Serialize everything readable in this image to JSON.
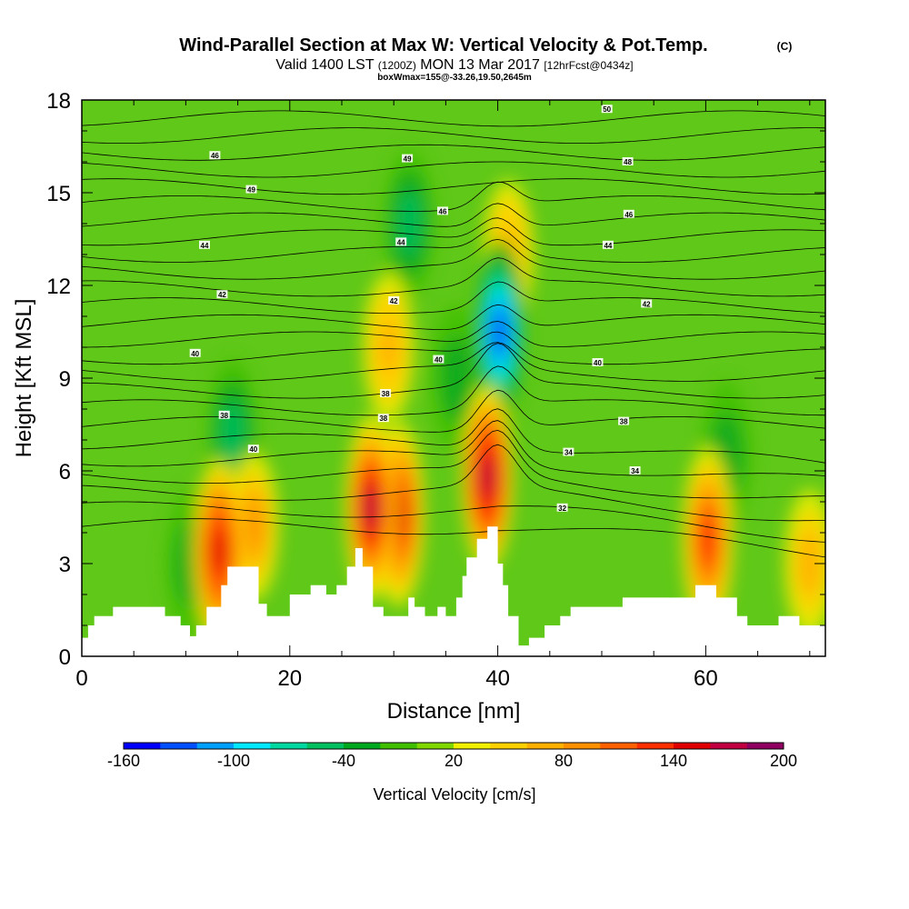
{
  "chart_data": {
    "type": "heatmap",
    "title": "Wind-Parallel Section at Max W: Vertical Velocity & Pot.Temp.",
    "title_mark": "(C)",
    "subtitle_parts": [
      "Valid 1400 LST",
      "(1200Z)",
      "MON 13 Mar 2017",
      "[12hrFcst@0434z]"
    ],
    "boxwmax": "boxWmax=155@-33.26,19.50,2645m",
    "xlabel": "Distance [nm]",
    "ylabel": "Height [Kft MSL]",
    "xlim": [
      0,
      71.5
    ],
    "ylim": [
      0,
      18
    ],
    "x_ticks": [
      0,
      20,
      40,
      60
    ],
    "y_ticks": [
      0,
      3,
      6,
      9,
      12,
      15,
      18
    ],
    "colorbar": {
      "label": "Vertical Velocity [cm/s]",
      "range": [
        -160,
        200
      ],
      "tick_labels": [
        "-160",
        "-100",
        "-40",
        "20",
        "80",
        "140",
        "200"
      ],
      "colors": [
        "#0000ff",
        "#0050ff",
        "#00a0ff",
        "#00e8ff",
        "#00d8a0",
        "#00c060",
        "#00a820",
        "#40c000",
        "#80d800",
        "#f0f000",
        "#ffd000",
        "#ffb000",
        "#ff9000",
        "#ff6000",
        "#ff3000",
        "#e00000",
        "#c00040",
        "#900060"
      ]
    },
    "terrain_profile": {
      "x": [
        0,
        0.6,
        1.2,
        3,
        6,
        8,
        9.5,
        10.4,
        11,
        12,
        13.4,
        14,
        16,
        17,
        17.8,
        19,
        20,
        21.5,
        22,
        23.5,
        24.5,
        25.5,
        26.3,
        27,
        28,
        29,
        30,
        31.4,
        32,
        33,
        34.2,
        35,
        36,
        36.6,
        37,
        38,
        39,
        40,
        40.5,
        41,
        42,
        43,
        44.5,
        46,
        47,
        50,
        52,
        55,
        57,
        58,
        59,
        61,
        62,
        63,
        64,
        67,
        69,
        71.5
      ],
      "height": [
        0.6,
        1.0,
        1.3,
        1.6,
        1.6,
        1.3,
        1.0,
        0.65,
        1.0,
        1.6,
        2.3,
        2.9,
        2.9,
        1.7,
        1.3,
        1.3,
        2.0,
        2.0,
        2.3,
        2.0,
        2.3,
        2.9,
        3.5,
        2.9,
        1.6,
        1.3,
        1.3,
        1.9,
        1.6,
        1.3,
        1.6,
        1.3,
        1.9,
        2.6,
        3.2,
        3.8,
        4.2,
        3.0,
        2.3,
        1.3,
        0.35,
        0.6,
        1.0,
        1.3,
        1.6,
        1.6,
        1.9,
        1.9,
        1.9,
        1.9,
        2.3,
        1.9,
        1.9,
        1.3,
        1.0,
        1.3,
        1.0,
        0.6
      ]
    },
    "w_features": [
      {
        "x": 13.2,
        "z": 3.4,
        "w": 150
      },
      {
        "x": 16.5,
        "z": 4.2,
        "w": 80
      },
      {
        "x": 27.8,
        "z": 4.8,
        "w": 160
      },
      {
        "x": 30.5,
        "z": 4.6,
        "w": 140
      },
      {
        "x": 39.0,
        "z": 5.8,
        "w": 170
      },
      {
        "x": 41.0,
        "z": 13.0,
        "w": 70
      },
      {
        "x": 29.5,
        "z": 10.0,
        "w": 70
      },
      {
        "x": 60.2,
        "z": 3.8,
        "w": 120
      },
      {
        "x": 70.0,
        "z": 3.0,
        "w": 60
      },
      {
        "x": 40.2,
        "z": 10.5,
        "w": -130
      },
      {
        "x": 31.5,
        "z": 14.0,
        "w": -60
      },
      {
        "x": 36.0,
        "z": 9.0,
        "w": -40
      },
      {
        "x": 14.5,
        "z": 7.2,
        "w": -50
      },
      {
        "x": 10.5,
        "z": 3.0,
        "w": -40
      },
      {
        "x": 62.0,
        "z": 6.5,
        "w": -30
      }
    ],
    "theta_labels": [
      {
        "x": 12.8,
        "z": 16.2,
        "text": "46"
      },
      {
        "x": 16.3,
        "z": 15.1,
        "text": "49"
      },
      {
        "x": 11.8,
        "z": 13.3,
        "text": "44"
      },
      {
        "x": 13.5,
        "z": 11.7,
        "text": "42"
      },
      {
        "x": 10.9,
        "z": 9.8,
        "text": "40"
      },
      {
        "x": 13.7,
        "z": 7.8,
        "text": "38"
      },
      {
        "x": 16.5,
        "z": 6.7,
        "text": "40"
      },
      {
        "x": 31.3,
        "z": 16.1,
        "text": "49"
      },
      {
        "x": 34.7,
        "z": 14.4,
        "text": "46"
      },
      {
        "x": 30.7,
        "z": 13.4,
        "text": "44"
      },
      {
        "x": 30.0,
        "z": 11.5,
        "text": "42"
      },
      {
        "x": 29.2,
        "z": 8.5,
        "text": "38"
      },
      {
        "x": 29.0,
        "z": 7.7,
        "text": "38"
      },
      {
        "x": 34.3,
        "z": 9.6,
        "text": "40"
      },
      {
        "x": 50.5,
        "z": 17.7,
        "text": "50"
      },
      {
        "x": 52.5,
        "z": 16.0,
        "text": "48"
      },
      {
        "x": 52.6,
        "z": 14.3,
        "text": "46"
      },
      {
        "x": 50.6,
        "z": 13.3,
        "text": "44"
      },
      {
        "x": 54.3,
        "z": 11.4,
        "text": "42"
      },
      {
        "x": 49.6,
        "z": 9.5,
        "text": "40"
      },
      {
        "x": 52.1,
        "z": 7.6,
        "text": "38"
      },
      {
        "x": 46.8,
        "z": 6.6,
        "text": "34"
      },
      {
        "x": 53.2,
        "z": 6.0,
        "text": "34"
      },
      {
        "x": 46.2,
        "z": 4.8,
        "text": "32"
      }
    ]
  }
}
